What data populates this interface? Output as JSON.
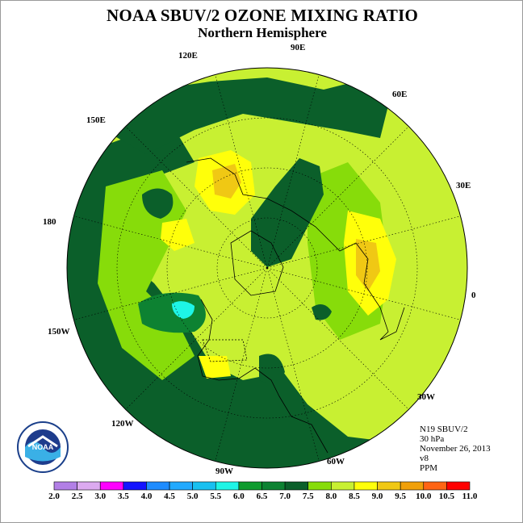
{
  "title": "NOAA SBUV/2 OZONE MIXING RATIO",
  "subtitle": "Northern Hemisphere",
  "longitude_labels": {
    "e90": "90E",
    "e120": "120E",
    "e60": "60E",
    "e150": "150E",
    "e30": "30E",
    "d180": "180",
    "d0": "0",
    "w150": "150W",
    "w30": "30W",
    "w120": "120W",
    "w90": "90W",
    "w60": "60W"
  },
  "info": {
    "instrument": "N19 SBUV/2",
    "level": "30 hPa",
    "date": "November 26, 2013",
    "version": "v8",
    "units": "PPM"
  },
  "legend": {
    "ticks": [
      "2.0",
      "2.5",
      "3.0",
      "3.5",
      "4.0",
      "4.5",
      "5.0",
      "5.5",
      "6.0",
      "6.5",
      "7.0",
      "7.5",
      "8.0",
      "8.5",
      "9.0",
      "9.5",
      "10.0",
      "10.5",
      "11.0"
    ],
    "colors": [
      "#b27fe6",
      "#dcaaf0",
      "#ff00ff",
      "#1414ff",
      "#1e8cff",
      "#22aaff",
      "#18c0f0",
      "#1ef5e6",
      "#0f9b2e",
      "#0d8232",
      "#0b5f2a",
      "#87dc0a",
      "#c8f032",
      "#ffff0a",
      "#f0c814",
      "#f0a00a",
      "#ff6414",
      "#ff0000",
      "#8b5030"
    ]
  },
  "logo": {
    "text": "NOAA",
    "ring_text": "NATIONAL OCEANIC AND ATMOSPHERIC ADMINISTRATION · U.S. DEPARTMENT OF COMMERCE"
  },
  "chart_data": {
    "type": "map",
    "projection": "north polar stereographic",
    "quantity": "ozone mixing ratio",
    "units": "PPM",
    "pressure_level_hpa": 30,
    "date": "November 26, 2013",
    "color_scale_min": 2.0,
    "color_scale_max": 11.0,
    "color_scale_step": 0.5,
    "meridian_labels": [
      "90E",
      "120E",
      "150E",
      "180",
      "150W",
      "120W",
      "90W",
      "60W",
      "30W",
      "0",
      "30E",
      "60E"
    ]
  }
}
